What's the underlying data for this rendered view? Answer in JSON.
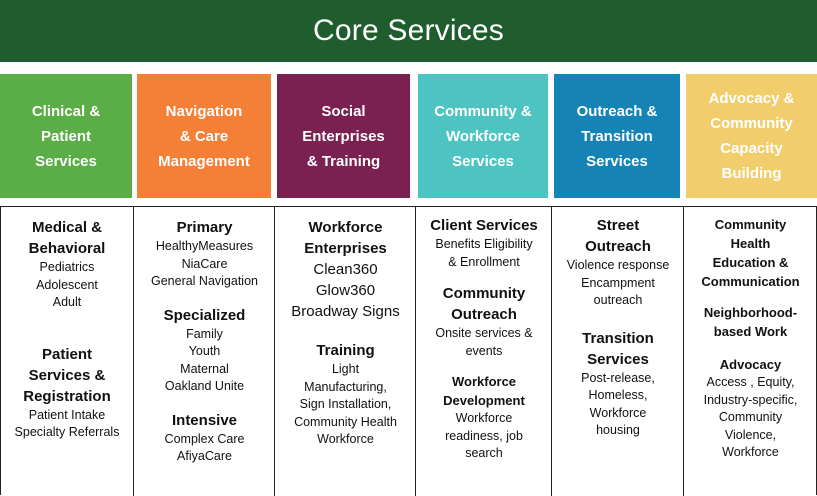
{
  "title": "Core Services",
  "colors": {
    "banner": "#1f5c2e",
    "clinical": "#5aae45",
    "navigation": "#f47f37",
    "social": "#7b2151",
    "community": "#4dc4c2",
    "outreach": "#1583b5",
    "advocacy": "#f2cd6c"
  },
  "headers": [
    "Clinical &\nPatient\nServices",
    "Navigation\n& Care\nManagement",
    "Social\nEnterprises\n& Training",
    "Community &\nWorkforce\nServices",
    "Outreach &\nTransition\nServices",
    "Advocacy &\nCommunity\nCapacity\nBuilding"
  ],
  "clinical": {
    "medical_title": "Medical  &\nBehavioral",
    "medical_items": "Pediatrics\nAdolescent\nAdult",
    "patient_title": "Patient\nServices &\nRegistration",
    "patient_items": "Patient Intake\nSpecialty Referrals"
  },
  "navigation": {
    "primary_title": "Primary",
    "primary_items": "HealthyMeasures\nNiaCare\nGeneral Navigation",
    "specialized_title": "Specialized",
    "specialized_items": "Family\nYouth\nMaternal\nOakland Unite",
    "intensive_title": "Intensive",
    "intensive_items": "Complex Care\nAfiyaCare"
  },
  "social": {
    "workforce_title": "Workforce\nEnterprises",
    "workforce_items": "Clean360\nGlow360\nBroadway  Signs",
    "training_title": "Training",
    "training_items": "Light\nManufacturing,\nSign Installation,\nCommunity Health\nWorkforce"
  },
  "community": {
    "client_title": "Client Services",
    "client_items": "Benefits Eligibility\n& Enrollment",
    "outreach_title": "Community\nOutreach",
    "outreach_items": "Onsite services &\nevents",
    "development_title": "Workforce\nDevelopment",
    "development_items": "Workforce\nreadiness, job\nsearch"
  },
  "outreach": {
    "street_title": "Street\nOutreach",
    "street_items": "Violence response\nEncampment\noutreach",
    "transition_title": "Transition\nServices",
    "transition_items": "Post-release,\nHomeless,\nWorkforce\nhousing"
  },
  "advocacy": {
    "education_title": "Community\nHealth\nEducation &\nCommunication",
    "neighborhood_title": "Neighborhood-\nbased  Work",
    "advocacy_title": "Advocacy",
    "advocacy_items": "Access , Equity,\nIndustry-specific,\nCommunity\nViolence,\nWorkforce"
  }
}
